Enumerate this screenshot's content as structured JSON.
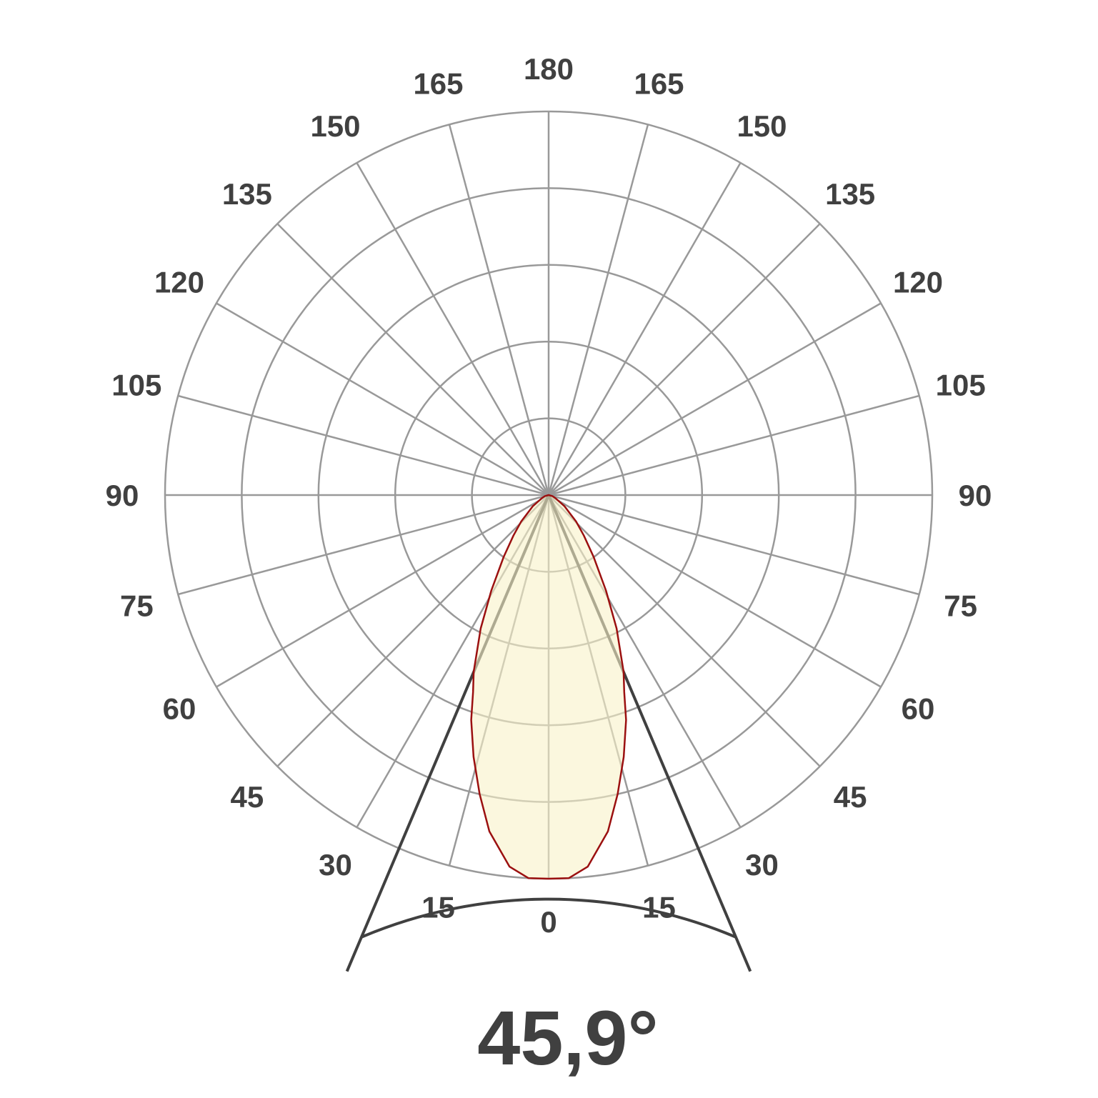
{
  "chart_data": {
    "type": "polar",
    "subtype": "luminous-intensity-distribution",
    "angle_labels_left": [
      "0",
      "15",
      "30",
      "45",
      "60",
      "75",
      "90",
      "105",
      "120",
      "135",
      "150",
      "165",
      "180"
    ],
    "angle_labels_right": [
      "15",
      "30",
      "45",
      "60",
      "75",
      "90",
      "105",
      "120",
      "135",
      "150",
      "165"
    ],
    "angle_step_deg": 15,
    "ring_count": 5,
    "grid": true,
    "series": [
      {
        "symmetric": true,
        "angles_deg": [
          0,
          3,
          6,
          10,
          13,
          16,
          19,
          21,
          23,
          27,
          31,
          36,
          41,
          46,
          55,
          65,
          75,
          90
        ],
        "relative_intensity": [
          1.0,
          1.0,
          0.974,
          0.89,
          0.8,
          0.71,
          0.62,
          0.55,
          0.5,
          0.39,
          0.29,
          0.2,
          0.14,
          0.1,
          0.05,
          0.02,
          0.01,
          0.0
        ]
      }
    ],
    "beam_angle_deg": 45.9,
    "beam_angle_label": "45,9°",
    "colors": {
      "grid": "#999999",
      "curve": "#9b1010",
      "fill": "#f8f2c8",
      "beam_lines": "#404040",
      "text": "#404040"
    }
  }
}
